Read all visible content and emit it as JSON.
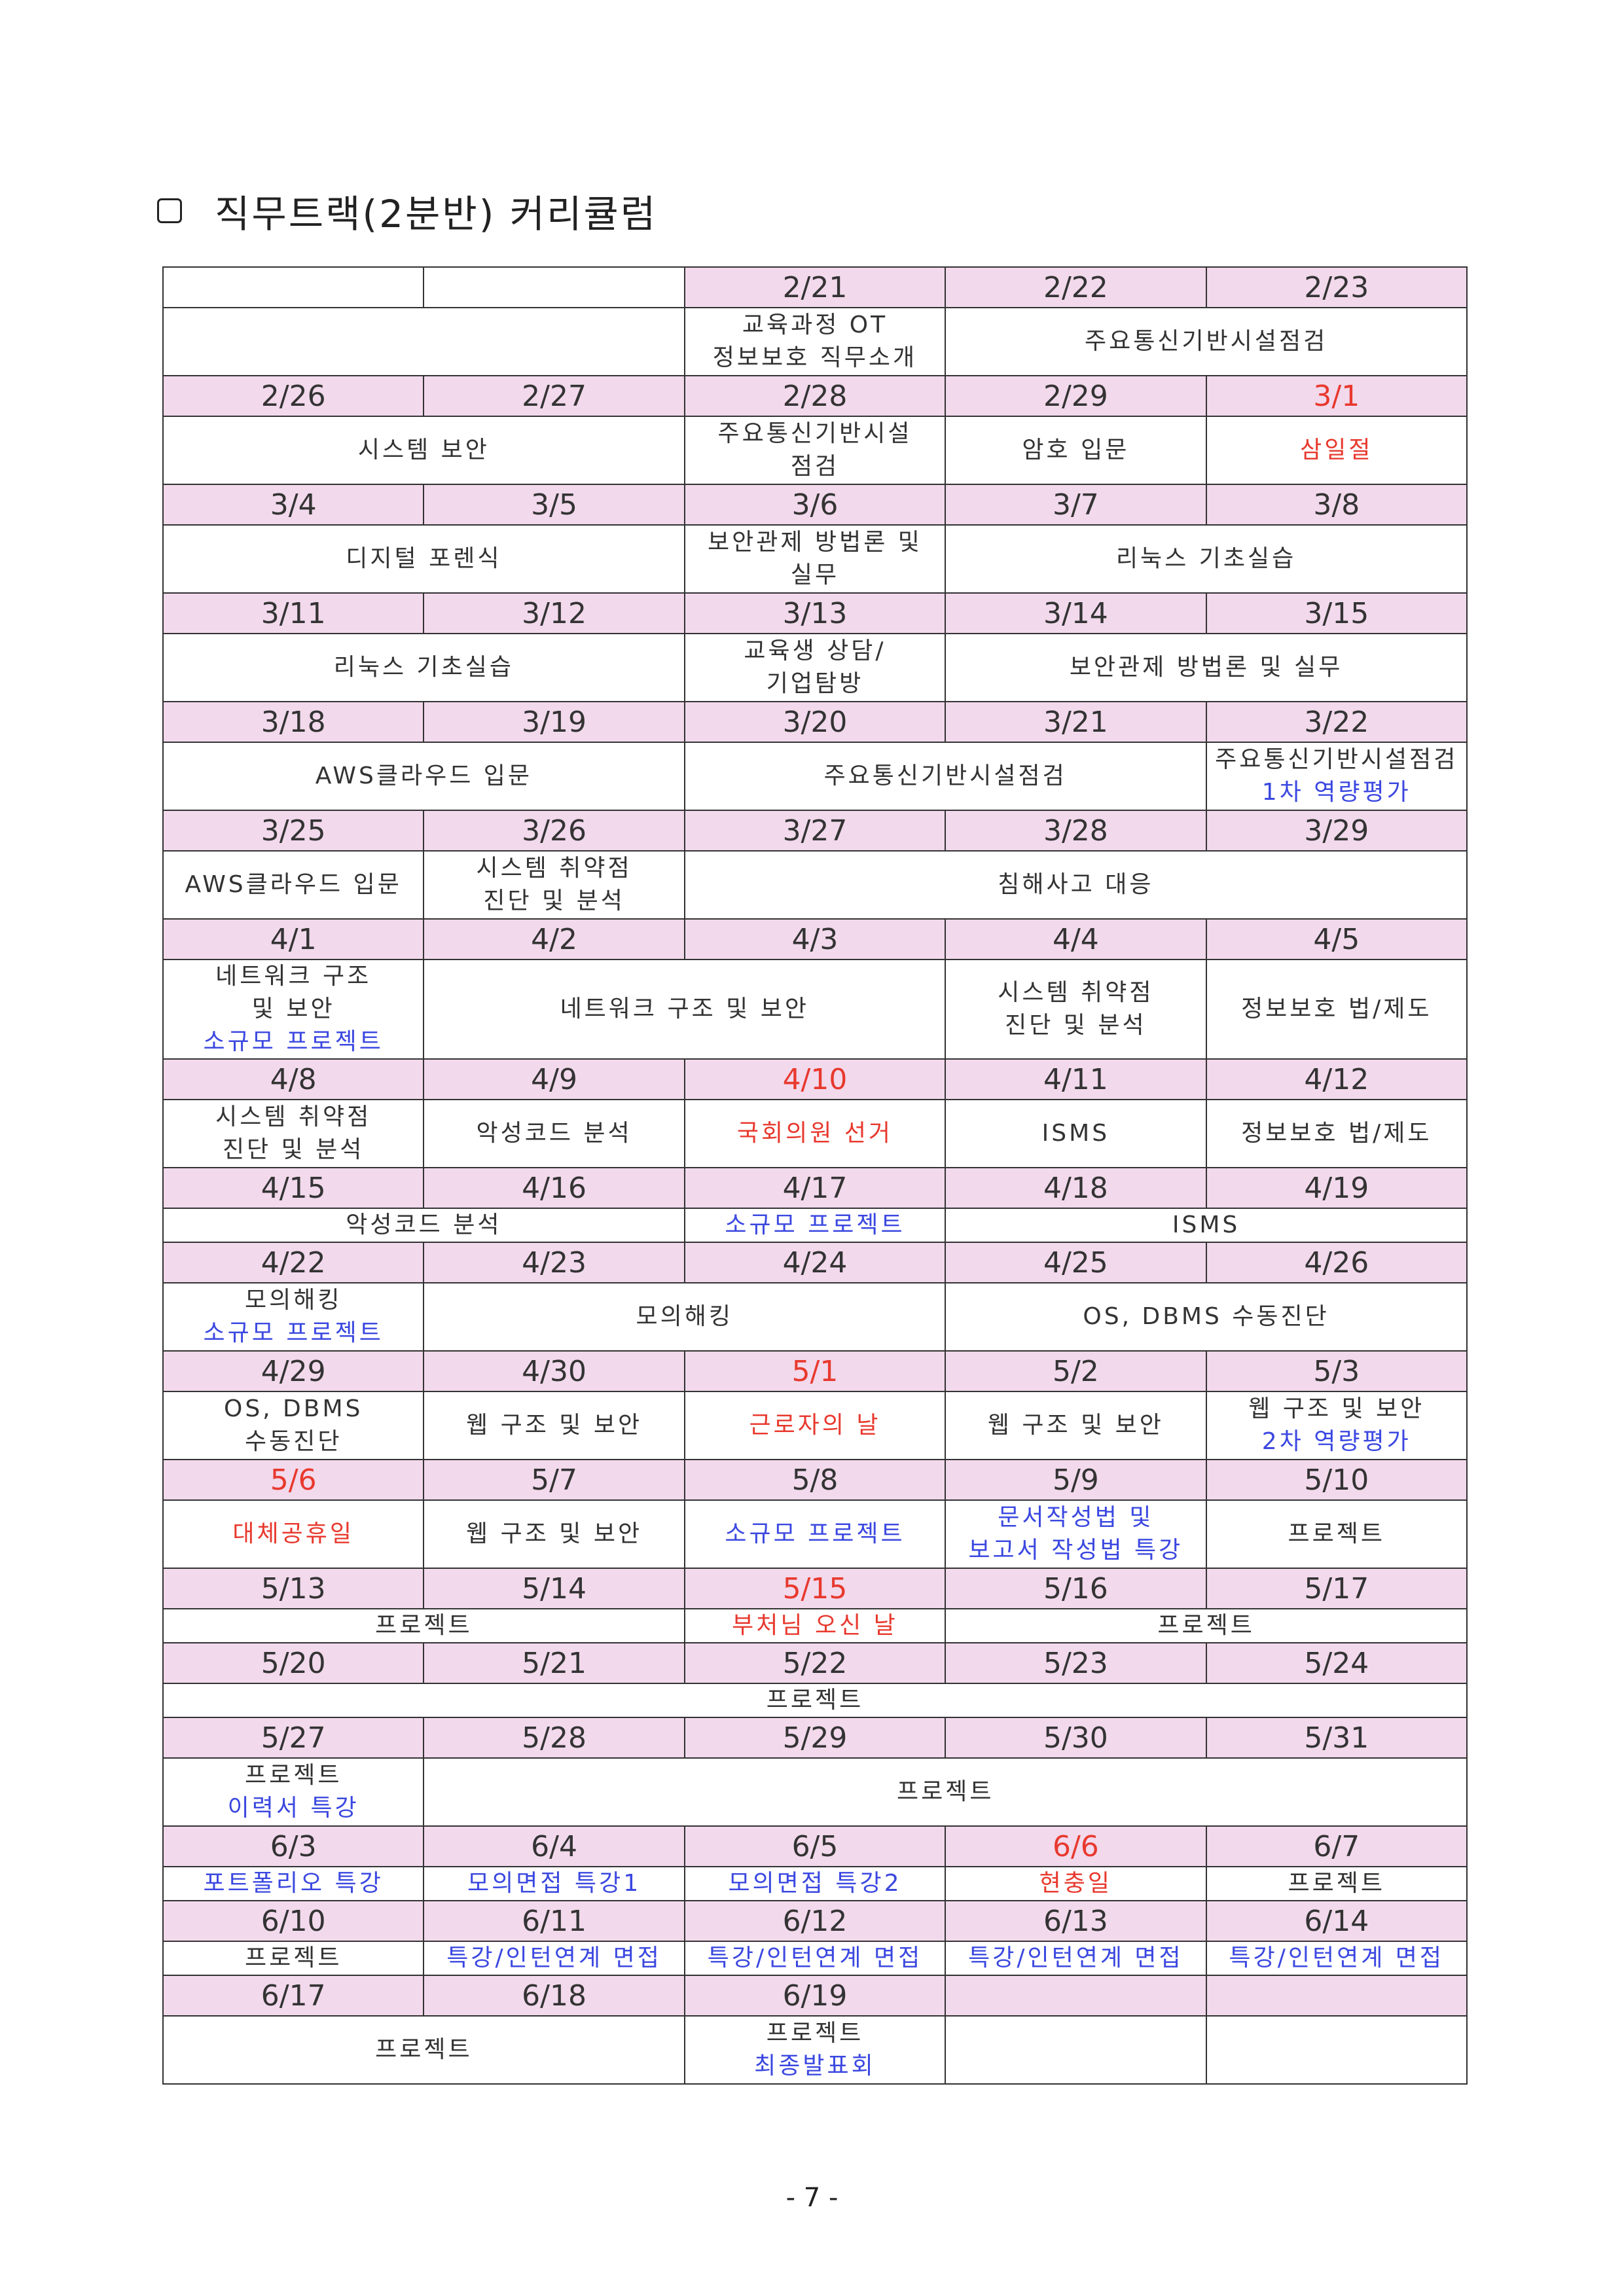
{
  "title": "직무트랙(2분반) 커리큘럼",
  "page_number": "- 7 -",
  "colors": {
    "date_bg": "#f2d9ec",
    "holiday": "#e8392e",
    "highlight": "#3b48e0",
    "border": "#333333"
  },
  "weeks": [
    {
      "dates": [
        "",
        "",
        "2/21",
        "2/22",
        "2/23"
      ],
      "events": [
        [
          "",
          2
        ],
        [
          "교육과정 OT\n정보보호 직무소개",
          1
        ],
        [
          "주요통신기반시설점검",
          2
        ]
      ]
    },
    {
      "dates": [
        "2/26",
        "2/27",
        "2/28",
        "2/29",
        "3/1"
      ],
      "events": [
        [
          "시스템 보안",
          2
        ],
        [
          "주요통신기반시설\n점검",
          1
        ],
        [
          "암호 입문",
          1
        ],
        [
          "삼일절",
          1
        ]
      ]
    },
    {
      "dates": [
        "3/4",
        "3/5",
        "3/6",
        "3/7",
        "3/8"
      ],
      "events": [
        [
          "디지털 포렌식",
          2
        ],
        [
          "보안관제 방법론 및\n실무",
          1
        ],
        [
          "리눅스 기초실습",
          2
        ]
      ]
    },
    {
      "dates": [
        "3/11",
        "3/12",
        "3/13",
        "3/14",
        "3/15"
      ],
      "events": [
        [
          "리눅스 기초실습",
          2
        ],
        [
          "교육생 상담/\n기업탐방",
          1
        ],
        [
          "보안관제 방법론 및 실무",
          2
        ]
      ]
    },
    {
      "dates": [
        "3/18",
        "3/19",
        "3/20",
        "3/21",
        "3/22"
      ],
      "events": [
        [
          "AWS클라우드 입문",
          2
        ],
        [
          "주요통신기반시설점검",
          2
        ],
        [
          "주요통신기반시설점검\n1차 역량평가",
          1
        ]
      ]
    },
    {
      "dates": [
        "3/25",
        "3/26",
        "3/27",
        "3/28",
        "3/29"
      ],
      "events": [
        [
          "AWS클라우드 입문",
          1
        ],
        [
          "시스템 취약점\n진단 및 분석",
          1
        ],
        [
          "침해사고 대응",
          3
        ]
      ]
    },
    {
      "dates": [
        "4/1",
        "4/2",
        "4/3",
        "4/4",
        "4/5"
      ],
      "events": [
        [
          "네트워크 구조\n및 보안\n소규모 프로젝트",
          1
        ],
        [
          "네트워크 구조 및 보안",
          2
        ],
        [
          "시스템 취약점\n진단 및 분석",
          1
        ],
        [
          "정보보호 법/제도",
          1
        ]
      ]
    },
    {
      "dates": [
        "4/8",
        "4/9",
        "4/10",
        "4/11",
        "4/12"
      ],
      "events": [
        [
          "시스템 취약점\n진단 및 분석",
          1
        ],
        [
          "악성코드 분석",
          1
        ],
        [
          "국회의원 선거",
          1
        ],
        [
          "ISMS",
          1
        ],
        [
          "정보보호 법/제도",
          1
        ]
      ]
    },
    {
      "dates": [
        "4/15",
        "4/16",
        "4/17",
        "4/18",
        "4/19"
      ],
      "events": [
        [
          "악성코드 분석",
          2
        ],
        [
          "소규모 프로젝트",
          1
        ],
        [
          "ISMS",
          2
        ]
      ]
    },
    {
      "dates": [
        "4/22",
        "4/23",
        "4/24",
        "4/25",
        "4/26"
      ],
      "events": [
        [
          "모의해킹\n소규모 프로젝트",
          1
        ],
        [
          "모의해킹",
          2
        ],
        [
          "OS, DBMS 수동진단",
          2
        ]
      ]
    },
    {
      "dates": [
        "4/29",
        "4/30",
        "5/1",
        "5/2",
        "5/3"
      ],
      "events": [
        [
          "OS, DBMS\n수동진단",
          1
        ],
        [
          "웹 구조 및 보안",
          1
        ],
        [
          "근로자의 날",
          1
        ],
        [
          "웹 구조 및 보안",
          1
        ],
        [
          "웹 구조 및 보안\n2차 역량평가",
          1
        ]
      ]
    },
    {
      "dates": [
        "5/6",
        "5/7",
        "5/8",
        "5/9",
        "5/10"
      ],
      "events": [
        [
          "대체공휴일",
          1
        ],
        [
          "웹 구조 및 보안",
          1
        ],
        [
          "소규모 프로젝트",
          1
        ],
        [
          "문서작성법 및\n보고서 작성법 특강",
          1
        ],
        [
          "프로젝트",
          1
        ]
      ]
    },
    {
      "dates": [
        "5/13",
        "5/14",
        "5/15",
        "5/16",
        "5/17"
      ],
      "events": [
        [
          "프로젝트",
          2
        ],
        [
          "부처님 오신 날",
          1
        ],
        [
          "프로젝트",
          2
        ]
      ]
    },
    {
      "dates": [
        "5/20",
        "5/21",
        "5/22",
        "5/23",
        "5/24"
      ],
      "events": [
        [
          "프로젝트",
          5
        ]
      ]
    },
    {
      "dates": [
        "5/27",
        "5/28",
        "5/29",
        "5/30",
        "5/31"
      ],
      "events": [
        [
          "프로젝트\n이력서 특강",
          1
        ],
        [
          "프로젝트",
          4
        ]
      ]
    },
    {
      "dates": [
        "6/3",
        "6/4",
        "6/5",
        "6/6",
        "6/7"
      ],
      "events": [
        [
          "포트폴리오 특강",
          1
        ],
        [
          "모의면접 특강1",
          1
        ],
        [
          "모의면접 특강2",
          1
        ],
        [
          "현충일",
          1
        ],
        [
          "프로젝트",
          1
        ]
      ]
    },
    {
      "dates": [
        "6/10",
        "6/11",
        "6/12",
        "6/13",
        "6/14"
      ],
      "events": [
        [
          "프로젝트",
          1
        ],
        [
          "특강/인턴연계 면접",
          1
        ],
        [
          "특강/인턴연계 면접",
          1
        ],
        [
          "특강/인턴연계 면접",
          1
        ],
        [
          "특강/인턴연계 면접",
          1
        ]
      ]
    },
    {
      "dates": [
        "6/17",
        "6/18",
        "6/19",
        "",
        ""
      ],
      "events": [
        [
          "프로젝트",
          2
        ],
        [
          "프로젝트\n최종발표회",
          1
        ],
        [
          "",
          1
        ],
        [
          "",
          1
        ]
      ]
    }
  ]
}
